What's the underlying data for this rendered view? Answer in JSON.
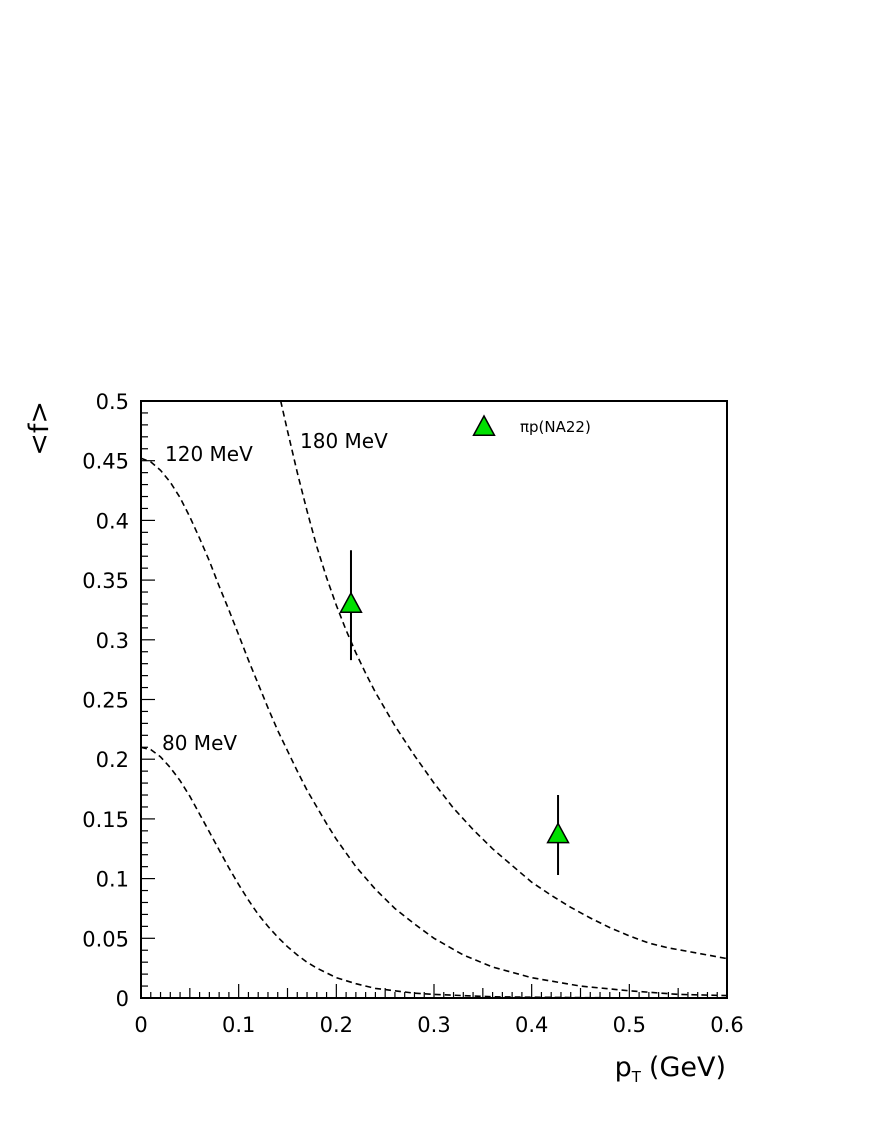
{
  "chart_data": {
    "type": "line",
    "title": "",
    "xlabel_main": "p",
    "xlabel_sub": "T",
    "xlabel_unit": "(GeV)",
    "ylabel": "<f>",
    "xlim": [
      0,
      0.6
    ],
    "ylim": [
      0,
      0.5
    ],
    "x_ticks": [
      "0",
      "0.1",
      "0.2",
      "0.3",
      "0.4",
      "0.5",
      "0.6"
    ],
    "y_ticks": [
      "0",
      "0.05",
      "0.1",
      "0.15",
      "0.2",
      "0.25",
      "0.3",
      "0.35",
      "0.4",
      "0.45",
      "0.5"
    ],
    "grid": false,
    "series": [
      {
        "name": "80 MeV",
        "style": "dashed",
        "x": [
          0,
          0.01,
          0.02,
          0.03,
          0.04,
          0.05,
          0.06,
          0.07,
          0.08,
          0.09,
          0.1,
          0.11,
          0.12,
          0.13,
          0.14,
          0.15,
          0.16,
          0.17,
          0.18,
          0.19,
          0.2,
          0.22,
          0.24,
          0.26,
          0.28,
          0.3,
          0.33,
          0.36,
          0.4,
          0.45,
          0.5,
          0.55,
          0.6
        ],
        "values": [
          0.21,
          0.208,
          0.202,
          0.193,
          0.182,
          0.169,
          0.154,
          0.139,
          0.124,
          0.109,
          0.095,
          0.082,
          0.07,
          0.06,
          0.051,
          0.043,
          0.036,
          0.03,
          0.025,
          0.021,
          0.017,
          0.012,
          0.008,
          0.006,
          0.004,
          0.003,
          0.002,
          0.001,
          0.0007,
          0.0003,
          0.0001,
          0.0,
          0.0
        ]
      },
      {
        "name": "120 MeV",
        "style": "dashed",
        "x": [
          0,
          0.01,
          0.02,
          0.03,
          0.04,
          0.05,
          0.06,
          0.07,
          0.08,
          0.09,
          0.1,
          0.11,
          0.12,
          0.13,
          0.14,
          0.15,
          0.16,
          0.17,
          0.18,
          0.19,
          0.2,
          0.22,
          0.24,
          0.26,
          0.28,
          0.3,
          0.33,
          0.36,
          0.4,
          0.45,
          0.5,
          0.55,
          0.6
        ],
        "values": [
          0.452,
          0.449,
          0.442,
          0.432,
          0.419,
          0.403,
          0.385,
          0.366,
          0.345,
          0.325,
          0.304,
          0.283,
          0.263,
          0.243,
          0.224,
          0.207,
          0.19,
          0.174,
          0.16,
          0.146,
          0.133,
          0.11,
          0.091,
          0.075,
          0.062,
          0.05,
          0.036,
          0.026,
          0.017,
          0.01,
          0.006,
          0.003,
          0.002
        ]
      },
      {
        "name": "180 MeV",
        "style": "dashed",
        "x": [
          0.143,
          0.15,
          0.16,
          0.17,
          0.18,
          0.19,
          0.2,
          0.21,
          0.22,
          0.23,
          0.24,
          0.26,
          0.28,
          0.3,
          0.32,
          0.34,
          0.36,
          0.38,
          0.4,
          0.42,
          0.44,
          0.46,
          0.48,
          0.5,
          0.52,
          0.54,
          0.56,
          0.58,
          0.6
        ],
        "values": [
          0.5,
          0.475,
          0.44,
          0.408,
          0.378,
          0.352,
          0.329,
          0.308,
          0.289,
          0.272,
          0.256,
          0.228,
          0.203,
          0.18,
          0.159,
          0.141,
          0.125,
          0.111,
          0.097,
          0.086,
          0.076,
          0.067,
          0.059,
          0.052,
          0.046,
          0.042,
          0.039,
          0.036,
          0.033
        ]
      },
      {
        "name": "πp(NA22)",
        "type": "scatter",
        "marker": "triangle",
        "color": "#00e000",
        "x": [
          0.215,
          0.427
        ],
        "values": [
          0.33,
          0.137
        ],
        "err_low": [
          0.047,
          0.034
        ],
        "err_high": [
          0.045,
          0.033
        ]
      }
    ],
    "legend": {
      "placement": "top-center",
      "entries": [
        "πp(NA22)"
      ]
    }
  }
}
